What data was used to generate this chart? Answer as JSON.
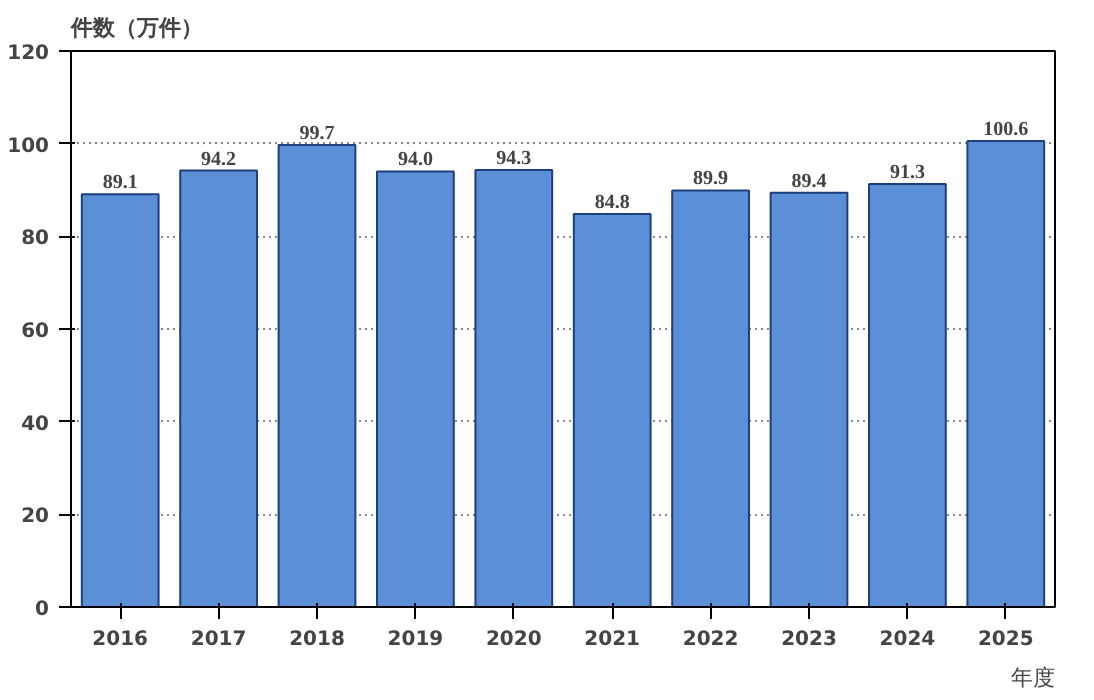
{
  "chart_data": {
    "type": "bar",
    "ylabel": "件数（万件）",
    "xlabel": "年度",
    "categories": [
      "2016",
      "2017",
      "2018",
      "2019",
      "2020",
      "2021",
      "2022",
      "2023",
      "2024",
      "2025"
    ],
    "values": [
      89.1,
      94.2,
      99.7,
      94.0,
      94.3,
      84.8,
      89.9,
      89.4,
      91.3,
      100.6
    ],
    "value_labels": [
      "89.1",
      "94.2",
      "99.7",
      "94.0",
      "94.3",
      "84.8",
      "89.9",
      "89.4",
      "91.3",
      "100.6"
    ],
    "color": "#5b8fd8",
    "ylim": [
      0,
      120
    ],
    "yticks": [
      0,
      20,
      40,
      60,
      80,
      100,
      120
    ],
    "grid": "y"
  }
}
